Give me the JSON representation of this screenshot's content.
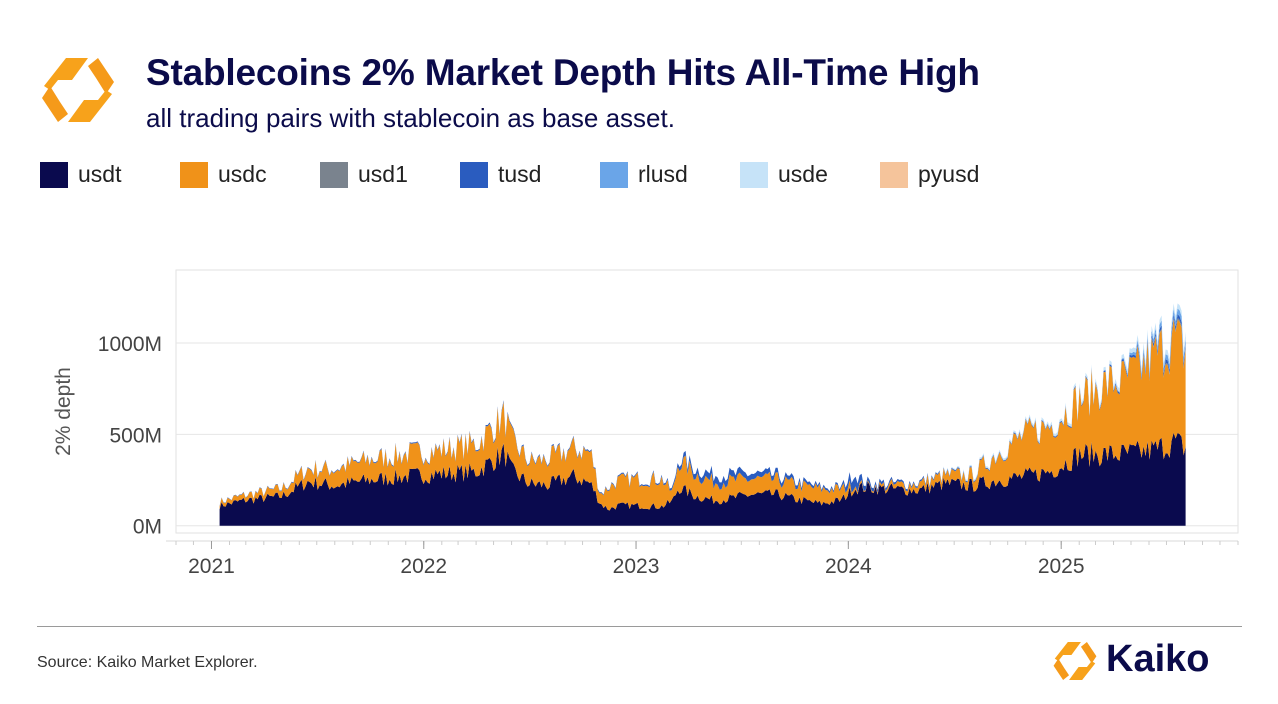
{
  "header": {
    "title": "Stablecoins 2% Market Depth Hits All-Time High",
    "subtitle": "all trading pairs with stablecoin as base asset."
  },
  "footer": {
    "source": "Source: Kaiko Market Explorer.",
    "brand": "Kaiko"
  },
  "colors": {
    "usdt": "#0a0a4e",
    "usdc": "#f09219",
    "usd1": "#7a838e",
    "tusd": "#2a5cbf",
    "rlusd": "#6aa5e8",
    "usde": "#c6e3f8",
    "pyusd": "#f5c49b",
    "brand_orange": "#f59a1a"
  },
  "chart_data": {
    "type": "area",
    "stacked": true,
    "ylabel": "2% depth",
    "ylim": [
      -40,
      1400
    ],
    "yticks": [
      0,
      500,
      1000
    ],
    "ytick_labels": [
      "0M",
      "500M",
      "1000M"
    ],
    "xlim": [
      "2020-11-01",
      "2025-11-01"
    ],
    "xticks": [
      "2021-01-01",
      "2022-01-01",
      "2023-01-01",
      "2024-01-01",
      "2025-01-01"
    ],
    "xtick_labels": [
      "2021",
      "2022",
      "2023",
      "2024",
      "2025"
    ],
    "legend_position": "top",
    "grid": "horizontal",
    "x": [
      "2021-01-15",
      "2021-03-01",
      "2021-05-01",
      "2021-06-15",
      "2021-08-01",
      "2021-10-01",
      "2021-12-01",
      "2022-02-01",
      "2022-04-01",
      "2022-05-20",
      "2022-06-01",
      "2022-07-01",
      "2022-08-01",
      "2022-09-15",
      "2022-10-15",
      "2022-11-01",
      "2022-11-15",
      "2022-12-01",
      "2023-01-01",
      "2023-02-15",
      "2023-03-05",
      "2023-03-15",
      "2023-04-15",
      "2023-05-15",
      "2023-06-15",
      "2023-07-15",
      "2023-09-01",
      "2023-10-01",
      "2023-11-15",
      "2023-12-20",
      "2024-01-10",
      "2024-02-01",
      "2024-03-15",
      "2024-05-01",
      "2024-06-15",
      "2024-08-01",
      "2024-09-15",
      "2024-11-01",
      "2024-12-15",
      "2025-02-01",
      "2025-03-15",
      "2025-04-15",
      "2025-05-15",
      "2025-06-15",
      "2025-07-15",
      "2025-08-05"
    ],
    "series": [
      {
        "name": "usdt",
        "values": [
          110,
          140,
          160,
          240,
          220,
          250,
          270,
          285,
          295,
          400,
          300,
          230,
          220,
          270,
          230,
          120,
          90,
          110,
          110,
          105,
          135,
          210,
          160,
          140,
          150,
          170,
          170,
          145,
          120,
          140,
          205,
          210,
          200,
          195,
          230,
          220,
          250,
          270,
          300,
          390,
          390,
          390,
          400,
          420,
          460,
          420
        ]
      },
      {
        "name": "usdc",
        "values": [
          20,
          28,
          40,
          70,
          90,
          110,
          120,
          130,
          150,
          200,
          165,
          120,
          140,
          150,
          170,
          50,
          120,
          135,
          145,
          150,
          40,
          150,
          120,
          100,
          95,
          85,
          80,
          80,
          80,
          60,
          20,
          5,
          20,
          35,
          45,
          55,
          150,
          230,
          250,
          300,
          380,
          400,
          450,
          520,
          560,
          520
        ]
      },
      {
        "name": "usd1",
        "values": [
          0,
          0,
          0,
          0,
          0,
          0,
          0,
          0,
          0,
          0,
          0,
          0,
          0,
          0,
          0,
          0,
          0,
          0,
          0,
          0,
          0,
          0,
          0,
          0,
          0,
          0,
          0,
          0,
          0,
          0,
          0,
          0,
          0,
          0,
          0,
          0,
          0,
          0,
          0,
          0,
          0,
          0,
          0,
          5,
          10,
          10
        ]
      },
      {
        "name": "tusd",
        "values": [
          2,
          2,
          3,
          4,
          4,
          5,
          5,
          5,
          6,
          8,
          7,
          6,
          6,
          6,
          6,
          5,
          5,
          6,
          6,
          8,
          12,
          22,
          30,
          40,
          35,
          30,
          25,
          20,
          12,
          10,
          60,
          20,
          12,
          8,
          6,
          5,
          5,
          5,
          6,
          6,
          8,
          10,
          14,
          18,
          20,
          20
        ]
      },
      {
        "name": "rlusd",
        "values": [
          0,
          0,
          0,
          0,
          0,
          0,
          0,
          0,
          0,
          0,
          0,
          0,
          0,
          0,
          0,
          0,
          0,
          0,
          0,
          0,
          0,
          0,
          0,
          0,
          0,
          0,
          0,
          0,
          0,
          0,
          0,
          0,
          0,
          0,
          0,
          0,
          0,
          0,
          0,
          0,
          0,
          5,
          20,
          25,
          30,
          35
        ]
      },
      {
        "name": "usde",
        "values": [
          0,
          0,
          0,
          0,
          0,
          0,
          0,
          0,
          0,
          0,
          0,
          0,
          0,
          0,
          0,
          0,
          0,
          0,
          0,
          0,
          0,
          0,
          0,
          0,
          0,
          0,
          0,
          0,
          0,
          0,
          0,
          0,
          0,
          0,
          5,
          8,
          10,
          12,
          14,
          16,
          18,
          20,
          25,
          25,
          28,
          30
        ]
      },
      {
        "name": "pyusd",
        "values": [
          0,
          0,
          0,
          0,
          0,
          0,
          0,
          0,
          0,
          0,
          0,
          0,
          0,
          0,
          0,
          0,
          0,
          0,
          0,
          0,
          0,
          0,
          0,
          0,
          0,
          0,
          0,
          0,
          0,
          0,
          0,
          0,
          0,
          0,
          0,
          0,
          0,
          0,
          0,
          0,
          0,
          0,
          0,
          0,
          0,
          0
        ]
      }
    ]
  }
}
